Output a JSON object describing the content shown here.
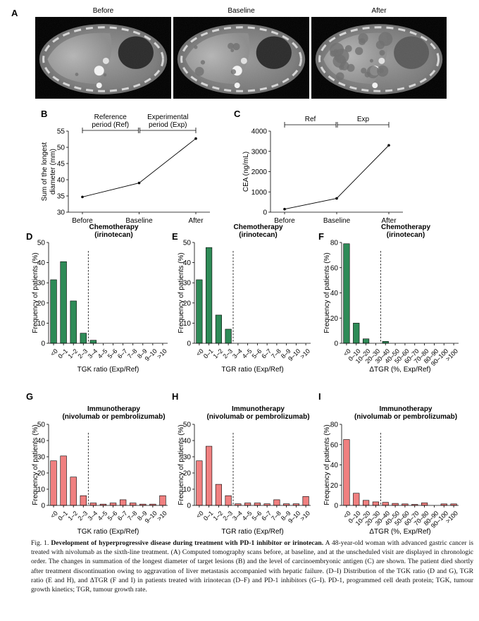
{
  "panel_letters": {
    "A": "A",
    "B": "B",
    "C": "C",
    "D": "D",
    "E": "E",
    "F": "F",
    "G": "G",
    "H": "H",
    "I": "I"
  },
  "ct_scans": [
    {
      "label": "Before",
      "severity": 0
    },
    {
      "label": "Baseline",
      "severity": 1
    },
    {
      "label": "After",
      "severity": 2
    }
  ],
  "caption": {
    "fig_label": "Fig. 1.",
    "bold_title": "Development of hyperprogressive disease during treatment with PD-1 inhibitor or irinotecan.",
    "body": "A 48-year-old woman with advanced gastric cancer is treated with nivolumab as the sixth-line treatment. (A) Computed tomography scans before, at baseline, and at the unscheduled visit are displayed in chronologic order. The changes in summation of the longest diameter of target lesions (B) and the level of carcinoembryonic antigen (C) are shown. The patient died shortly after treatment discontinuation owing to aggravation of liver metastasis accompanied with hepatic failure. (D–I) Distribution of the TGK ratio (D and G), TGR ratio (E and H), and ΔTGR (F and I) in patients treated with irinotecan (D–F) and PD-1 inhibitors (G–I). PD-1, programmed cell death protein; TGK, tumour growth kinetics; TGR, tumour growth rate."
  },
  "chart_data": [
    {
      "id": "B",
      "type": "line",
      "categories": [
        "Before",
        "Baseline",
        "After"
      ],
      "values": [
        34.7,
        39.0,
        52.7
      ],
      "ylabel": "Sum of the longest diameter (mm)",
      "ylabel_lines": [
        "Sum of the longest",
        "diameter (mm)"
      ],
      "ylim": [
        30,
        55
      ],
      "yticks": [
        30,
        35,
        40,
        45,
        50,
        55
      ],
      "periods": [
        {
          "label_lines": [
            "Reference",
            "period (Ref)"
          ]
        },
        {
          "label_lines": [
            "Experimental",
            "period (Exp)"
          ]
        }
      ]
    },
    {
      "id": "C",
      "type": "line",
      "categories": [
        "Before",
        "Baseline",
        "After"
      ],
      "values": [
        150,
        680,
        3300
      ],
      "ylabel": "CEA (ng/mL)",
      "ylim": [
        0,
        4000
      ],
      "yticks": [
        0,
        1000,
        2000,
        3000,
        4000
      ],
      "periods": [
        {
          "label_lines": [
            "Ref"
          ]
        },
        {
          "label_lines": [
            "Exp"
          ]
        }
      ]
    },
    {
      "id": "D",
      "type": "bar",
      "color": "#2e8b57",
      "title_lines": [
        "Chemotherapy",
        "(irinotecan)"
      ],
      "categories": [
        "<0",
        "0–1",
        "1–2",
        "2–3",
        "3–4",
        "4–5",
        "5–6",
        "6–7",
        "7–8",
        "8–9",
        "9–10",
        ">10"
      ],
      "values": [
        31.5,
        40.5,
        21,
        5,
        1.5,
        0,
        0,
        0,
        0,
        0,
        0,
        0
      ],
      "xlabel": "TGK ratio (Exp/Ref)",
      "ylabel": "Frequency of patients (%)",
      "ylim": [
        0,
        50
      ],
      "yticks": [
        0,
        10,
        20,
        30,
        40,
        50
      ],
      "cutoff_after_index": 4
    },
    {
      "id": "E",
      "type": "bar",
      "color": "#2e8b57",
      "title_lines": [
        "Chemotherapy",
        "(irinotecan)"
      ],
      "categories": [
        "<0",
        "0–1",
        "1–2",
        "2–3",
        "3–4",
        "4–5",
        "5–6",
        "6–7",
        "7–8",
        "8–9",
        "9–10",
        ">10"
      ],
      "values": [
        31.5,
        47.5,
        14,
        7,
        0,
        0,
        0,
        0,
        0,
        0,
        0,
        0
      ],
      "xlabel": "TGR ratio (Exp/Ref)",
      "ylabel": "Frequency of patients (%)",
      "ylim": [
        0,
        50
      ],
      "yticks": [
        0,
        10,
        20,
        30,
        40,
        50
      ],
      "cutoff_after_index": 4
    },
    {
      "id": "F",
      "type": "bar",
      "color": "#2e8b57",
      "title_lines": [
        "Chemotherapy",
        "(irinotecan)"
      ],
      "categories": [
        "<0",
        "0–10",
        "10–20",
        "20–30",
        "30–40",
        "40–50",
        "50–60",
        "60–70",
        "70–80",
        "80–90",
        "90–100",
        ">100"
      ],
      "values": [
        79,
        16,
        3.5,
        0,
        1.5,
        0,
        0,
        0,
        0,
        0,
        0,
        0
      ],
      "xlabel": "ΔTGR (%, Exp/Ref)",
      "ylabel": "Frequency of patients (%)",
      "ylim": [
        0,
        80
      ],
      "yticks": [
        0,
        20,
        40,
        60,
        80
      ],
      "cutoff_after_index": 4
    },
    {
      "id": "G",
      "type": "bar",
      "color": "#f08080",
      "title_lines": [
        "Immunotherapy",
        "(nivolumab or pembrolizumab)"
      ],
      "categories": [
        "<0",
        "0–1",
        "1–2",
        "2–3",
        "3–4",
        "4–5",
        "5–6",
        "6–7",
        "7–8",
        "8–9",
        "9–10",
        ">10"
      ],
      "values": [
        27.5,
        30.5,
        17.5,
        6,
        1.5,
        0.8,
        1.5,
        3.5,
        1.5,
        0.8,
        0.8,
        6
      ],
      "xlabel": "TGK ratio (Exp/Ref)",
      "ylabel": "Frequency of patients (%)",
      "ylim": [
        0,
        50
      ],
      "yticks": [
        0,
        10,
        20,
        30,
        40,
        50
      ],
      "cutoff_after_index": 4
    },
    {
      "id": "H",
      "type": "bar",
      "color": "#f08080",
      "title_lines": [
        "Immunotherapy",
        "(nivolumab or pembrolizumab)"
      ],
      "categories": [
        "<0",
        "0–1",
        "1–2",
        "2–3",
        "3–4",
        "4–5",
        "5–6",
        "6–7",
        "7–8",
        "8–9",
        "9–10",
        ">10"
      ],
      "values": [
        27.5,
        36.5,
        13,
        6,
        1,
        1.5,
        1.5,
        1,
        3.5,
        1,
        1,
        5.5
      ],
      "xlabel": "TGR ratio (Exp/Ref)",
      "ylabel": "Frequency of patients (%)",
      "ylim": [
        0,
        50
      ],
      "yticks": [
        0,
        10,
        20,
        30,
        40,
        50
      ],
      "cutoff_after_index": 4
    },
    {
      "id": "I",
      "type": "bar",
      "color": "#f08080",
      "title_lines": [
        "Immunotherapy",
        "(nivolumab or pembrolizumab)"
      ],
      "categories": [
        "<0",
        "0–10",
        "10–20",
        "20–30",
        "30–40",
        "40–50",
        "50–60",
        "60–70",
        "70–80",
        "80–90",
        "90–100",
        ">100"
      ],
      "values": [
        65,
        12,
        5,
        3.5,
        3,
        2,
        1.5,
        1,
        2.5,
        0,
        1.5,
        1.5
      ],
      "xlabel": "ΔTGR (%, Exp/Ref)",
      "ylabel": "Frequency of patients (%)",
      "ylim": [
        0,
        80
      ],
      "yticks": [
        0,
        20,
        40,
        60,
        80
      ],
      "cutoff_after_index": 4
    }
  ]
}
